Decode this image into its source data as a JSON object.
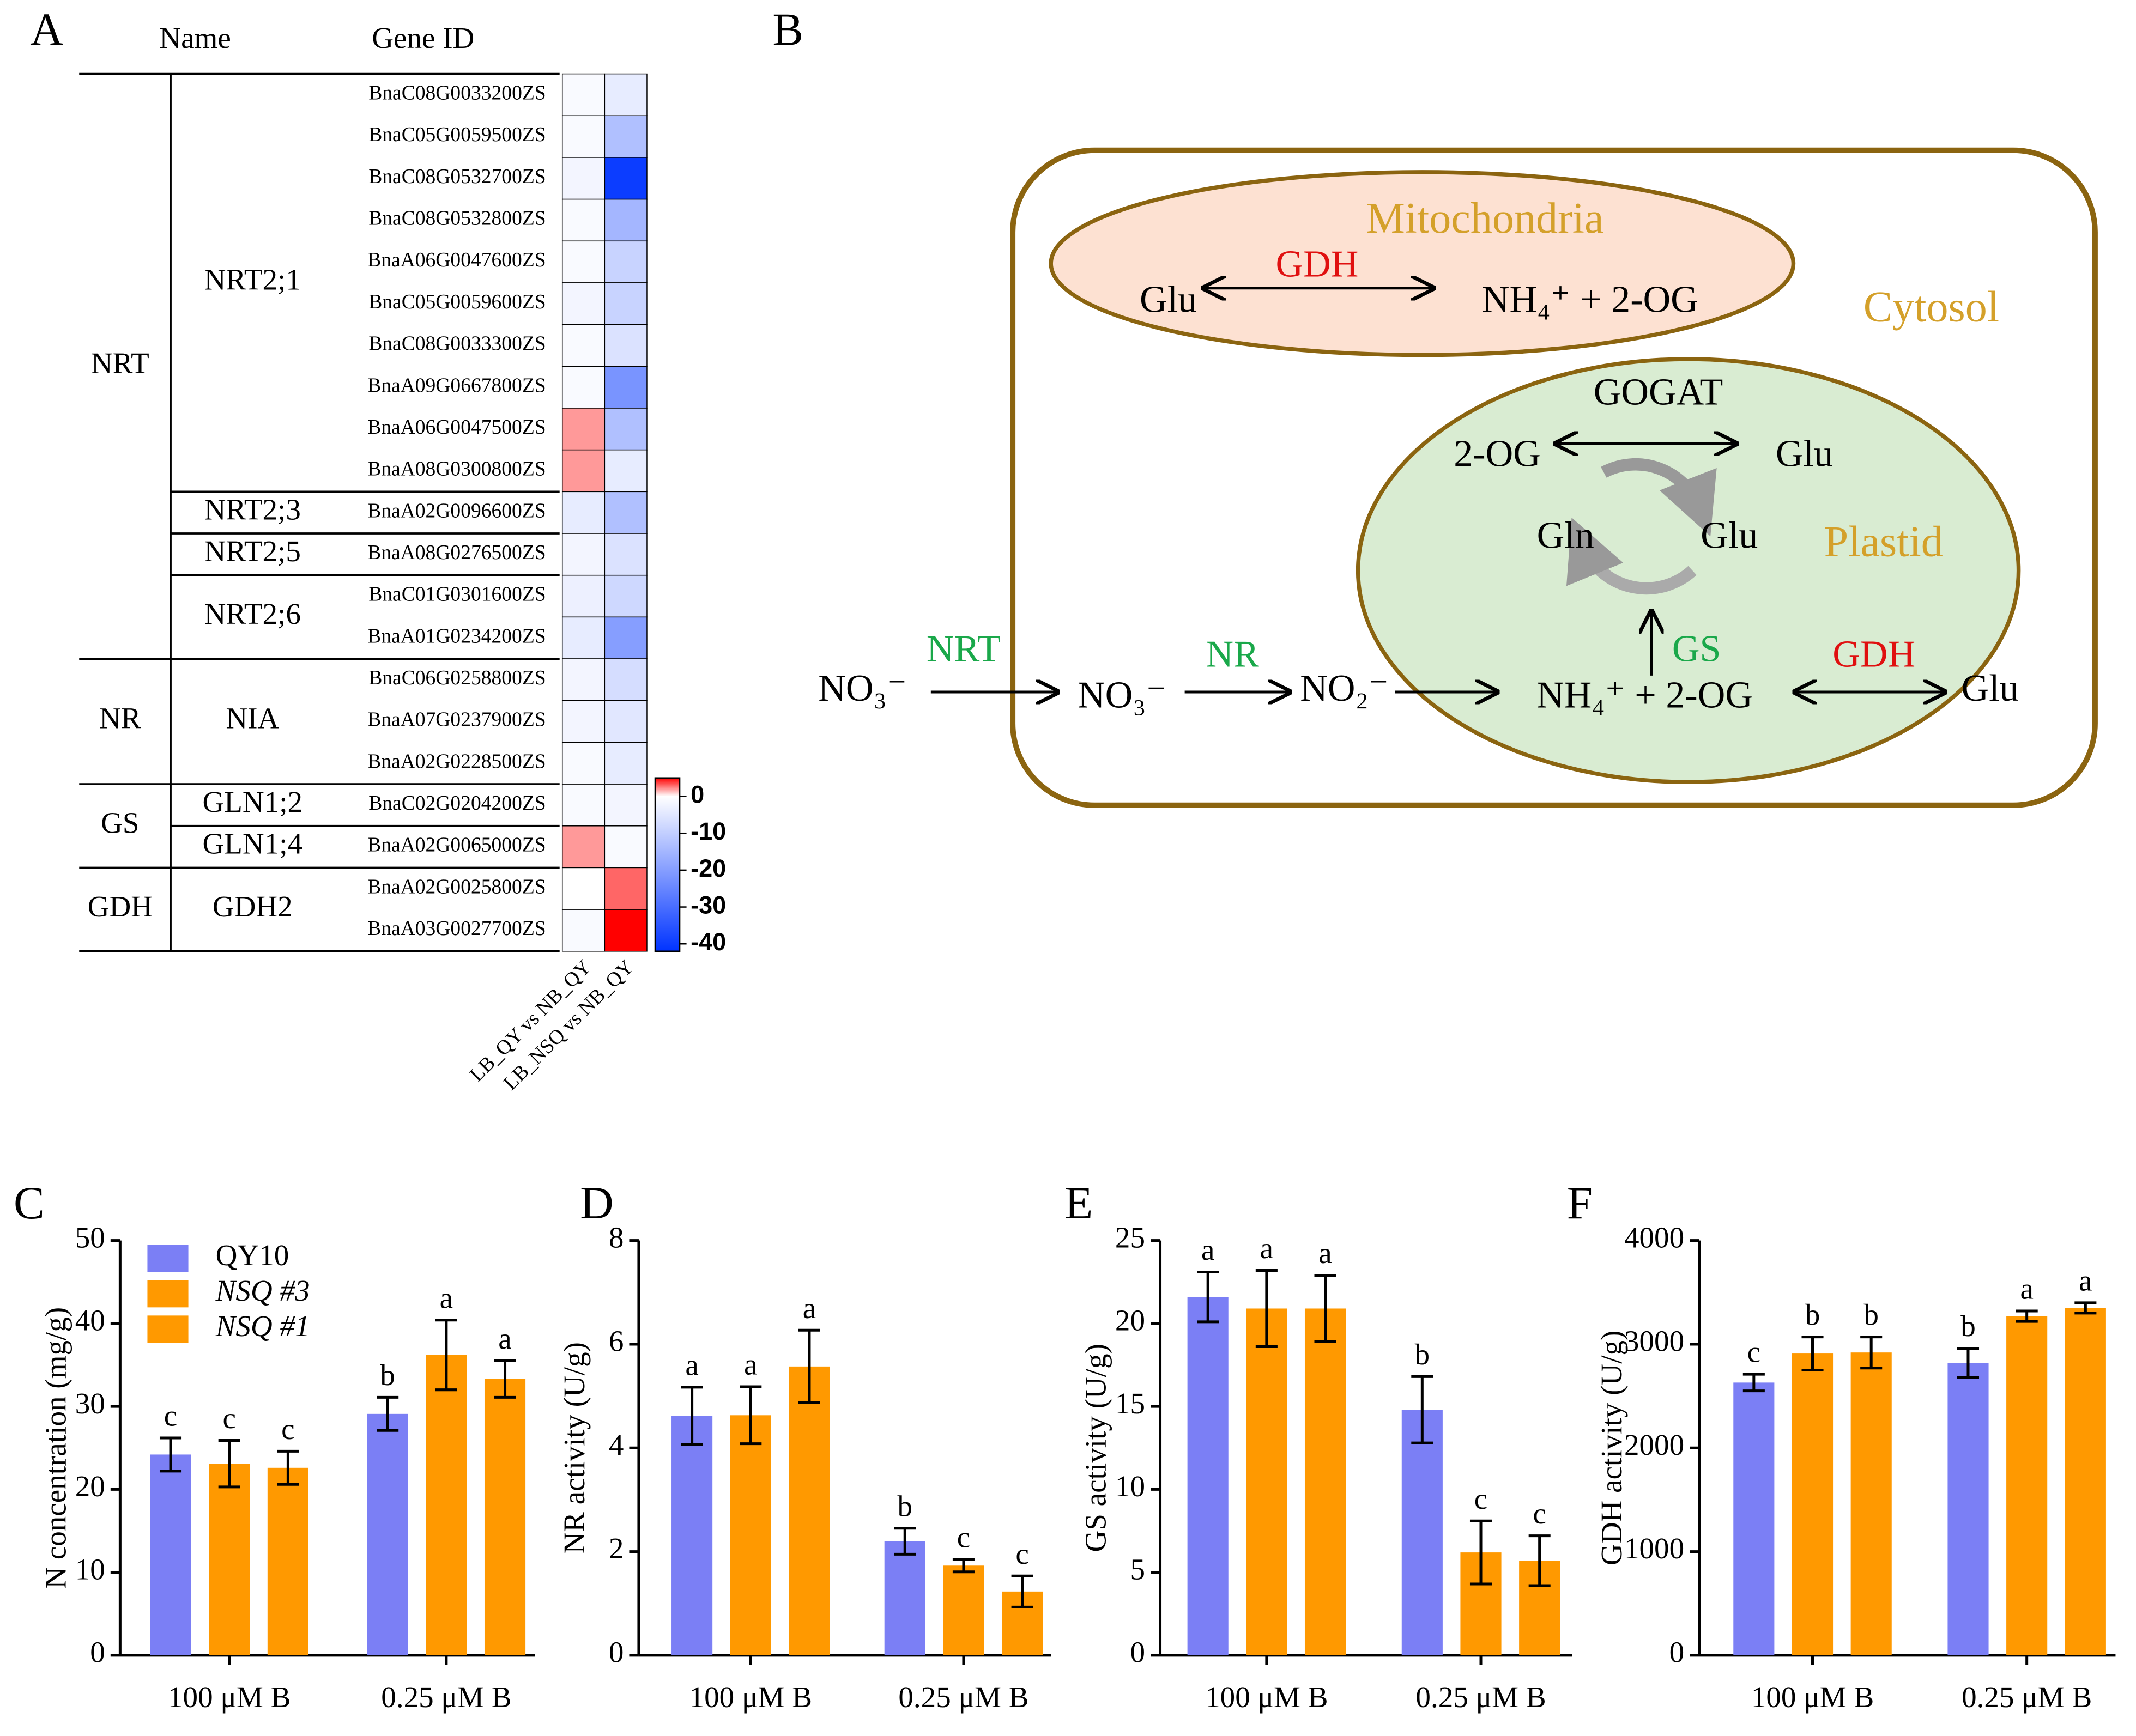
{
  "panels": [
    "A",
    "B",
    "C",
    "D",
    "E",
    "F"
  ],
  "diagram": {
    "compartments": [
      "Mitochondria",
      "Cytosol",
      "Plastid"
    ],
    "mito": {
      "enzyme": "GDH",
      "left": "Glu",
      "right": "NH₄⁺ + 2-OG"
    },
    "plastid": {
      "gogat": "GOGAT",
      "left": "2-OG",
      "right": "Glu",
      "cycle_left": "Gln",
      "cycle_right": "Glu",
      "gs": "GS",
      "gdh": "GDH",
      "nh4": "NH₄⁺ + 2-OG",
      "glu": "Glu"
    },
    "uptake": {
      "nrt": "NRT",
      "no3_out": "NO₃⁻",
      "no3_in": "NO₃⁻",
      "nr": "NR",
      "no2": "NO₂⁻"
    }
  },
  "chart_data": [
    {
      "type": "heatmap",
      "headers": [
        "Name",
        "Gene ID"
      ],
      "columns": [
        "LB_QY vs NB_QY",
        "LB_NSQ vs NB_QY"
      ],
      "zlim": [
        -42,
        5
      ],
      "zmid": 0,
      "zticks": [
        0,
        -10,
        -20,
        -30,
        -40
      ],
      "colors": [
        "#0033ff",
        "#ffffff",
        "#ff0000"
      ],
      "groups": [
        {
          "name": "NRT",
          "subgroups": [
            {
              "name": "NRT2;1",
              "genes": [
                {
                  "id": "BnaC08G0033200ZS",
                  "values": [
                    -1,
                    -4
                  ]
                },
                {
                  "id": "BnaC05G0059500ZS",
                  "values": [
                    -1,
                    -13
                  ]
                },
                {
                  "id": "BnaC08G0532700ZS",
                  "values": [
                    -2,
                    -40
                  ]
                },
                {
                  "id": "BnaC08G0532800ZS",
                  "values": [
                    -1,
                    -15
                  ]
                },
                {
                  "id": "BnaA06G0047600ZS",
                  "values": [
                    -1,
                    -9
                  ]
                },
                {
                  "id": "BnaC05G0059600ZS",
                  "values": [
                    -2,
                    -9
                  ]
                },
                {
                  "id": "BnaC08G0033300ZS",
                  "values": [
                    -1,
                    -6
                  ]
                },
                {
                  "id": "BnaA09G0667800ZS",
                  "values": [
                    -1,
                    -22
                  ]
                },
                {
                  "id": "BnaA06G0047500ZS",
                  "values": [
                    2,
                    -13
                  ]
                },
                {
                  "id": "BnaA08G0300800ZS",
                  "values": [
                    2,
                    -4
                  ]
                }
              ]
            },
            {
              "name": "NRT2;3",
              "genes": [
                {
                  "id": "BnaA02G0096600ZS",
                  "values": [
                    -4,
                    -13
                  ]
                }
              ]
            },
            {
              "name": "NRT2;5",
              "genes": [
                {
                  "id": "BnaA08G0276500ZS",
                  "values": [
                    -2,
                    -6
                  ]
                }
              ]
            },
            {
              "name": "NRT2;6",
              "genes": [
                {
                  "id": "BnaC01G0301600ZS",
                  "values": [
                    -3,
                    -8
                  ]
                },
                {
                  "id": "BnaA01G0234200ZS",
                  "values": [
                    -4,
                    -20
                  ]
                }
              ]
            }
          ]
        },
        {
          "name": "NR",
          "subgroups": [
            {
              "name": "NIA",
              "genes": [
                {
                  "id": "BnaC06G0258800ZS",
                  "values": [
                    -2,
                    -7
                  ]
                },
                {
                  "id": "BnaA07G0237900ZS",
                  "values": [
                    -2,
                    -5
                  ]
                },
                {
                  "id": "BnaA02G0228500ZS",
                  "values": [
                    -1,
                    -4
                  ]
                }
              ]
            }
          ]
        },
        {
          "name": "GS",
          "subgroups": [
            {
              "name": "GLN1;2",
              "genes": [
                {
                  "id": "BnaC02G0204200ZS",
                  "values": [
                    -1,
                    -2
                  ]
                }
              ]
            },
            {
              "name": "GLN1;4",
              "genes": [
                {
                  "id": "BnaA02G0065000ZS",
                  "values": [
                    2,
                    -1
                  ]
                }
              ]
            }
          ]
        },
        {
          "name": "GDH",
          "subgroups": [
            {
              "name": "GDH2",
              "genes": [
                {
                  "id": "BnaA02G0025800ZS",
                  "values": [
                    0,
                    3
                  ]
                },
                {
                  "id": "BnaA03G0027700ZS",
                  "values": [
                    -1,
                    5
                  ]
                }
              ]
            }
          ]
        }
      ]
    },
    {
      "type": "bar",
      "ylabel": "N concentration (mg/g)",
      "categories": [
        "100 μM B",
        "0.25 μM B"
      ],
      "ylim": [
        0,
        50
      ],
      "yticks": [
        0,
        10,
        20,
        30,
        40,
        50
      ],
      "legend": "upper left",
      "series": [
        {
          "name": "QY10",
          "color": "#7b7ff5",
          "values": [
            24.2,
            29.1
          ],
          "errors": [
            2,
            2
          ],
          "letters": [
            "c",
            "b"
          ]
        },
        {
          "name": "NSQ #3",
          "color": "#ff9900",
          "font_style": "italic",
          "values": [
            23.1,
            36.2
          ],
          "errors": [
            2.8,
            4.2
          ],
          "letters": [
            "c",
            "a"
          ]
        },
        {
          "name": "NSQ #1",
          "color": "#ff9900",
          "font_style": "italic",
          "values": [
            22.6,
            33.3
          ],
          "errors": [
            2,
            2.2
          ],
          "letters": [
            "c",
            "a"
          ]
        }
      ]
    },
    {
      "type": "bar",
      "ylabel": "NR activity (U/g)",
      "categories": [
        "100 μM B",
        "0.25 μM B"
      ],
      "ylim": [
        0,
        8
      ],
      "yticks": [
        0,
        2,
        4,
        6,
        8
      ],
      "series": [
        {
          "name": "QY10",
          "color": "#7b7ff5",
          "values": [
            4.62,
            2.2
          ],
          "errors": [
            0.55,
            0.25
          ],
          "letters": [
            "a",
            "b"
          ]
        },
        {
          "name": "NSQ #3",
          "color": "#ff9900",
          "values": [
            4.63,
            1.73
          ],
          "errors": [
            0.55,
            0.12
          ],
          "letters": [
            "a",
            "c"
          ]
        },
        {
          "name": "NSQ #1",
          "color": "#ff9900",
          "values": [
            5.57,
            1.23
          ],
          "errors": [
            0.7,
            0.3
          ],
          "letters": [
            "a",
            "c"
          ]
        }
      ]
    },
    {
      "type": "bar",
      "ylabel": "GS activity (U/g)",
      "categories": [
        "100 μM B",
        "0.25 μM B"
      ],
      "ylim": [
        0,
        25
      ],
      "yticks": [
        0,
        5,
        10,
        15,
        20,
        25
      ],
      "series": [
        {
          "name": "QY10",
          "color": "#7b7ff5",
          "values": [
            21.6,
            14.8
          ],
          "errors": [
            1.5,
            2
          ],
          "letters": [
            "a",
            "b"
          ]
        },
        {
          "name": "NSQ #3",
          "color": "#ff9900",
          "values": [
            20.9,
            6.2
          ],
          "errors": [
            2.3,
            1.9
          ],
          "letters": [
            "a",
            "c"
          ]
        },
        {
          "name": "NSQ #1",
          "color": "#ff9900",
          "values": [
            20.9,
            5.7
          ],
          "errors": [
            2,
            1.5
          ],
          "letters": [
            "a",
            "c"
          ]
        }
      ]
    },
    {
      "type": "bar",
      "ylabel": "GDH activity (U/g)",
      "categories": [
        "100 μM B",
        "0.25 μM B"
      ],
      "ylim": [
        0,
        4000
      ],
      "yticks": [
        0,
        1000,
        2000,
        3000,
        4000
      ],
      "series": [
        {
          "name": "QY10",
          "color": "#7b7ff5",
          "values": [
            2630,
            2820
          ],
          "errors": [
            80,
            140
          ],
          "letters": [
            "c",
            "b"
          ]
        },
        {
          "name": "NSQ #3",
          "color": "#ff9900",
          "values": [
            2910,
            3270
          ],
          "errors": [
            160,
            50
          ],
          "letters": [
            "b",
            "a"
          ]
        },
        {
          "name": "NSQ #1",
          "color": "#ff9900",
          "values": [
            2920,
            3350
          ],
          "errors": [
            150,
            50
          ],
          "letters": [
            "b",
            "a"
          ]
        }
      ]
    }
  ]
}
